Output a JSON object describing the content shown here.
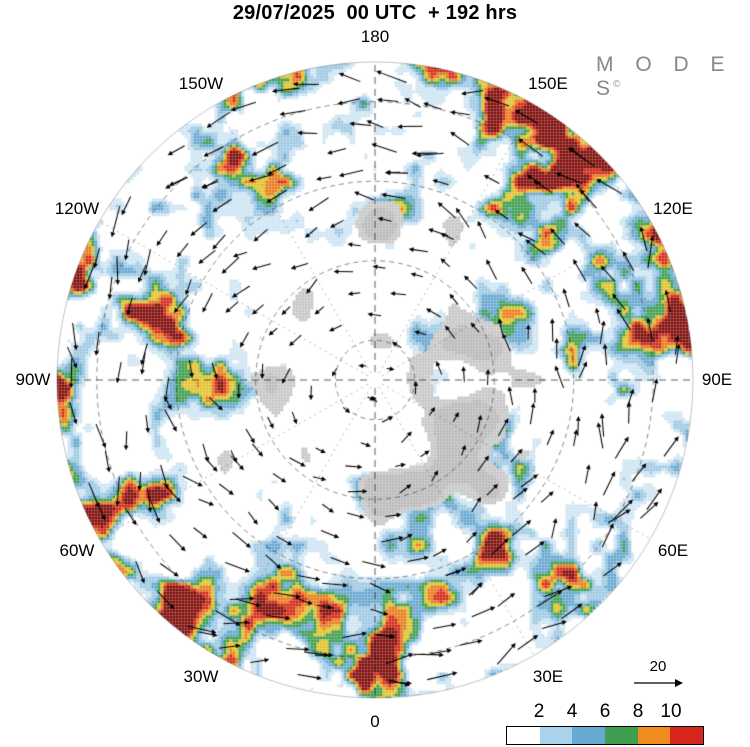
{
  "title": "29/07/2025  00 UTC  + 192 hrs",
  "logo": {
    "text": "M O D E S",
    "mark": "©"
  },
  "map": {
    "lon_labels": [
      "180",
      "150W",
      "150E",
      "120W",
      "120E",
      "90W",
      "90E",
      "60W",
      "60E",
      "30W",
      "30E",
      "0"
    ]
  },
  "reference_arrow": {
    "label": "20"
  },
  "chart_data": {
    "type": "heatmap",
    "title": "29/07/2025 00 UTC + 192 hrs",
    "datetime": "29/07/2025 00 UTC",
    "forecast_lead": "+ 192 hrs",
    "source_label": "MODES",
    "projection": "north-polar, 180 at top, 0 at bottom, labels every 30 degrees",
    "lon_ticks": [
      "180",
      "150W",
      "120W",
      "90W",
      "60W",
      "30W",
      "0",
      "30E",
      "60E",
      "90E",
      "120E",
      "150E"
    ],
    "colorbar": {
      "ticks": [
        2,
        4,
        6,
        8,
        10
      ],
      "segment_colors": [
        "#ffffff",
        "#a9d3ea",
        "#67a9d2",
        "#3f9e4f",
        "#ef8b1f",
        "#d7271c"
      ],
      "position": "bottom-right"
    },
    "reference_vector": {
      "label": "20"
    },
    "overlays": [
      "wind-vectors",
      "gray-landmasses",
      "dashed-lat-lon-grid"
    ],
    "colorscale": [
      "#ffffff",
      "#cfe6f3",
      "#9fcae4",
      "#68a8d0",
      "#3f9e4f",
      "#e2c32e",
      "#e87d1e",
      "#d22b18",
      "#7e0c08"
    ],
    "land_color": "#c7c7c7",
    "grid": true,
    "legend_position": "none"
  }
}
